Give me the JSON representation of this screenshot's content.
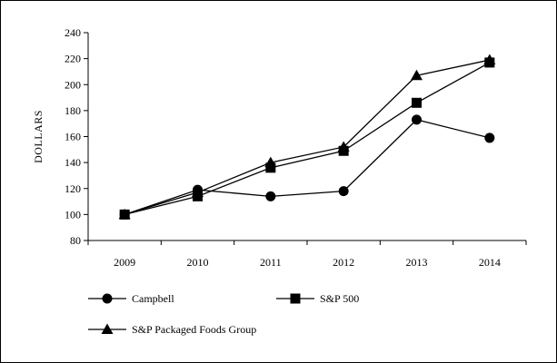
{
  "chart_data": {
    "type": "line",
    "categories": [
      "2009",
      "2010",
      "2011",
      "2012",
      "2013",
      "2014"
    ],
    "ylabel": "DOLLARS",
    "xlabel": "",
    "ylim": [
      80,
      240
    ],
    "yticks": [
      80,
      100,
      120,
      140,
      160,
      180,
      200,
      220,
      240
    ],
    "grid": false,
    "legend_position": "bottom",
    "series": [
      {
        "name": "Campbell",
        "marker": "circle",
        "values": [
          100,
          119,
          114,
          118,
          173,
          159
        ]
      },
      {
        "name": "S&P 500",
        "marker": "square",
        "values": [
          100,
          114,
          136,
          149,
          186,
          217
        ]
      },
      {
        "name": "S&P Packaged Foods Group",
        "marker": "triangle",
        "values": [
          100,
          117,
          140,
          152,
          207,
          219
        ]
      }
    ],
    "line_color": "#000000"
  }
}
